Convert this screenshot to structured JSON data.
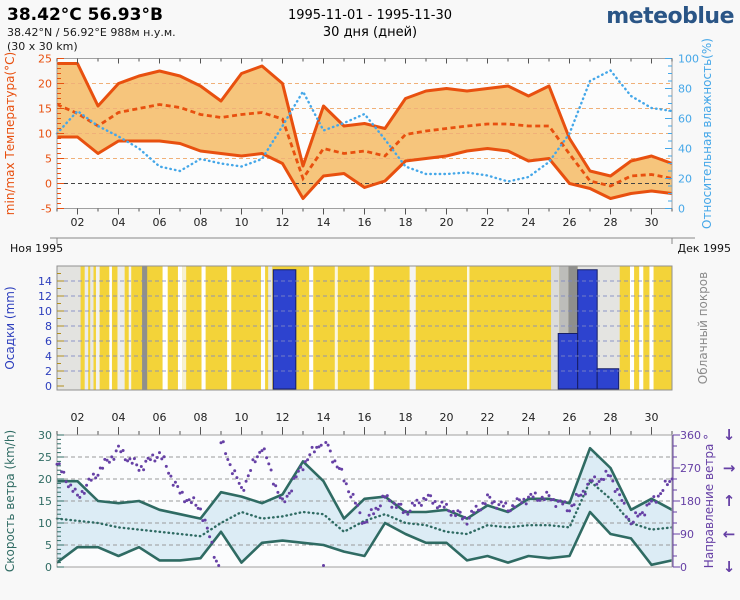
{
  "header": {
    "title": "38.42°С 56.93°В",
    "subtitle": "38.42°N / 56.92°E   988м н.у.м.",
    "area": "(30 x 30 km)",
    "date_range": "1995-11-01 - 1995-11-30",
    "duration": "30 дня (дней)",
    "brand": "meteoblue",
    "brand_color": "#2a5586"
  },
  "axis": {
    "day_tick_labels": [
      "02",
      "04",
      "06",
      "08",
      "10",
      "12",
      "14",
      "16",
      "18",
      "20",
      "22",
      "24",
      "26",
      "28",
      "30"
    ],
    "month_left": "Ноя 1995",
    "month_right": "Дек 1995"
  },
  "chart_data": [
    {
      "type": "line",
      "name": "temperature-humidity",
      "title_left": "min/max Температура(°C)",
      "title_right": "Относительная влажность(%)",
      "x_days": [
        1,
        2,
        3,
        4,
        5,
        6,
        7,
        8,
        9,
        10,
        11,
        12,
        13,
        14,
        15,
        16,
        17,
        18,
        19,
        20,
        21,
        22,
        23,
        24,
        25,
        26,
        27,
        28,
        29,
        30,
        31
      ],
      "ylim_left": [
        -5,
        25
      ],
      "yticks_left": [
        -5,
        0,
        5,
        10,
        15,
        20,
        25
      ],
      "ylim_right": [
        0,
        100
      ],
      "yticks_right": [
        0,
        20,
        40,
        60,
        80,
        100
      ],
      "series": [
        {
          "name": "temp_max",
          "axis": "left",
          "style": "solid",
          "color": "#e8500f",
          "values": [
            24,
            24,
            15.5,
            20,
            21.5,
            22.5,
            21.5,
            19.5,
            16.5,
            22,
            23.5,
            20,
            3.5,
            15.5,
            11.5,
            12,
            11,
            17,
            18.5,
            19,
            18.5,
            19,
            19.5,
            17.5,
            19.5,
            9,
            2.5,
            1.5,
            4.5,
            5.5,
            4
          ]
        },
        {
          "name": "temp_min",
          "axis": "left",
          "style": "solid",
          "color": "#e8500f",
          "values": [
            9.3,
            9.3,
            6,
            8.5,
            8.5,
            8.5,
            8,
            6.5,
            6,
            5.5,
            6,
            4,
            -3,
            1.5,
            2,
            -0.8,
            0.5,
            4.5,
            5,
            5.5,
            6.5,
            7,
            6.5,
            4.5,
            5,
            0,
            -1,
            -3,
            -2,
            -1.5,
            -2
          ]
        },
        {
          "name": "temp_mean",
          "axis": "left",
          "style": "dashed",
          "color": "#e8500f",
          "values": [
            15.8,
            14,
            11.5,
            14.2,
            15,
            15.8,
            15.2,
            13.8,
            13.2,
            13.8,
            14.2,
            12.9,
            1,
            7,
            6,
            6.5,
            5.5,
            9.8,
            10.5,
            11,
            11.5,
            11.9,
            11.9,
            11.5,
            11.5,
            5.9,
            0.5,
            -0.5,
            1.5,
            1.8,
            1
          ]
        },
        {
          "name": "humidity",
          "axis": "right",
          "style": "dotted",
          "color": "#45a7e8",
          "values": [
            50,
            65,
            55,
            48,
            40,
            28,
            25,
            33,
            30,
            28,
            33,
            55,
            78,
            52,
            57,
            63,
            46,
            28,
            23,
            23,
            24,
            22,
            18,
            21,
            31,
            50,
            85,
            92,
            75,
            67,
            65
          ]
        }
      ],
      "band_fill": "#f6c57c",
      "grid_color": "#f0b078",
      "zero_line_color": "#444",
      "plot_bg": "#fcfcfc"
    },
    {
      "type": "bar",
      "name": "precipitation-cloud",
      "title_left": "Осадки (mm)",
      "title_right": "Облачный покров",
      "ylim": [
        0,
        15
      ],
      "yticks": [
        0,
        2,
        4,
        6,
        8,
        10,
        12,
        14
      ],
      "bar_color": "#2d43cf",
      "bar_edge": "#161e66",
      "sun_color": "#f3d339",
      "grid_color": "#7f89c4",
      "label_color": "#2c3ebd",
      "bars": [
        {
          "from": 11.55,
          "to": 12.65,
          "mm": 15.5
        },
        {
          "from": 25.45,
          "to": 26.4,
          "mm": 7
        },
        {
          "from": 26.4,
          "to": 27.35,
          "mm": 15.5
        },
        {
          "from": 27.35,
          "to": 28.4,
          "mm": 2.3
        }
      ],
      "cloud_segments": [
        {
          "from": 1.0,
          "to": 2.15,
          "color": "#e3e3e0"
        },
        {
          "from": 2.35,
          "to": 2.52,
          "color": "#ececea"
        },
        {
          "from": 2.62,
          "to": 2.78,
          "color": "#e8e8e6"
        },
        {
          "from": 2.9,
          "to": 3.08,
          "color": "#f2f2f0"
        },
        {
          "from": 3.55,
          "to": 3.68,
          "color": "#ffffff"
        },
        {
          "from": 3.95,
          "to": 4.3,
          "color": "#ededea"
        },
        {
          "from": 4.5,
          "to": 4.62,
          "color": "#f5f5f2"
        },
        {
          "from": 5.15,
          "to": 5.4,
          "color": "#8f8f8c"
        },
        {
          "from": 6.15,
          "to": 6.4,
          "color": "#ffffff"
        },
        {
          "from": 6.9,
          "to": 7.1,
          "color": "#ffffff"
        },
        {
          "from": 7.1,
          "to": 7.3,
          "color": "#f7f1d0"
        },
        {
          "from": 8.05,
          "to": 8.25,
          "color": "#ffffff"
        },
        {
          "from": 9.3,
          "to": 9.5,
          "color": "#ffffff"
        },
        {
          "from": 10.95,
          "to": 11.15,
          "color": "#fdfdfb"
        },
        {
          "from": 11.3,
          "to": 11.5,
          "color": "#e9e9e6"
        },
        {
          "from": 13.3,
          "to": 13.5,
          "color": "#ffffff"
        },
        {
          "from": 14.55,
          "to": 14.7,
          "color": "#fbf6dd"
        },
        {
          "from": 16.25,
          "to": 16.45,
          "color": "#ffffff"
        },
        {
          "from": 18.2,
          "to": 18.5,
          "color": "#f4f4f1"
        },
        {
          "from": 21.0,
          "to": 21.12,
          "color": "#fcf8e0"
        },
        {
          "from": 25.1,
          "to": 25.5,
          "color": "#dcdcd9"
        },
        {
          "from": 25.5,
          "to": 25.95,
          "color": "#bdbdba"
        },
        {
          "from": 25.95,
          "to": 26.4,
          "color": "#8f8f8c"
        },
        {
          "from": 26.4,
          "to": 28.45,
          "color": "#e4e4e1"
        },
        {
          "from": 28.95,
          "to": 29.15,
          "color": "#ffffff"
        },
        {
          "from": 29.4,
          "to": 29.6,
          "color": "#ffffff"
        },
        {
          "from": 29.9,
          "to": 30.1,
          "color": "#ffffff"
        }
      ]
    },
    {
      "type": "line-scatter",
      "name": "wind",
      "title_left": "Скорость ветра (km/h)",
      "title_right": "Направление ветра °",
      "x_days": [
        1,
        2,
        3,
        4,
        5,
        6,
        7,
        8,
        9,
        10,
        11,
        12,
        13,
        14,
        15,
        16,
        17,
        18,
        19,
        20,
        21,
        22,
        23,
        24,
        25,
        26,
        27,
        28,
        29,
        30,
        31
      ],
      "ylim_left": [
        0,
        30
      ],
      "yticks_left": [
        0,
        5,
        10,
        15,
        20,
        25,
        30
      ],
      "ylim_right": [
        0,
        360
      ],
      "yticks_right": [
        0,
        90,
        180,
        270,
        360
      ],
      "direction_arrows": [
        {
          "deg": 360,
          "glyph": "↓"
        },
        {
          "deg": 270,
          "glyph": "→"
        },
        {
          "deg": 180,
          "glyph": "↑"
        },
        {
          "deg": 90,
          "glyph": "←"
        },
        {
          "deg": 0,
          "glyph": "↓"
        }
      ],
      "series": [
        {
          "name": "wind_max",
          "style": "solid",
          "color": "#2f6b63",
          "values": [
            19.5,
            19.5,
            15,
            14.5,
            15,
            13,
            12,
            11,
            17,
            16,
            14.5,
            16.5,
            24,
            19.5,
            11,
            15.5,
            16,
            12.5,
            12.5,
            13,
            11,
            14,
            12.5,
            15.5,
            15.5,
            14.5,
            27,
            22.5,
            13,
            15.5,
            13
          ]
        },
        {
          "name": "wind_min",
          "style": "solid",
          "color": "#2f6b63",
          "values": [
            1,
            4.5,
            4.5,
            2.5,
            4.5,
            1.5,
            1.5,
            2,
            8,
            1,
            5.5,
            6,
            5.5,
            5,
            3.5,
            2.5,
            10,
            7.5,
            5.5,
            5.5,
            1.5,
            2.5,
            1,
            2.5,
            2,
            2.5,
            12.5,
            7.5,
            6.5,
            0.5,
            1.5
          ]
        },
        {
          "name": "wind_mean",
          "style": "dotted",
          "color": "#2f6b63",
          "values": [
            11,
            10.5,
            10,
            9,
            8.5,
            8,
            7.5,
            7,
            10,
            12.5,
            11,
            11.5,
            12.5,
            12,
            8,
            10.5,
            12,
            10,
            9.5,
            8,
            7.5,
            9.5,
            9,
            9.5,
            9.5,
            9,
            19.5,
            15.5,
            10,
            8.5,
            9
          ]
        }
      ],
      "direction_deg": [
        280,
        190,
        260,
        320,
        270,
        310,
        200,
        160,
        340,
        210,
        330,
        170,
        280,
        350,
        240,
        120,
        190,
        150,
        190,
        160,
        130,
        185,
        160,
        190,
        190,
        160,
        230,
        250,
        120,
        175,
        240
      ],
      "band_fill": "#dcecf5",
      "grid_color": "#9a9a9a",
      "dot_color": "#6640a5",
      "plot_bg": "#fbfcfd"
    }
  ]
}
